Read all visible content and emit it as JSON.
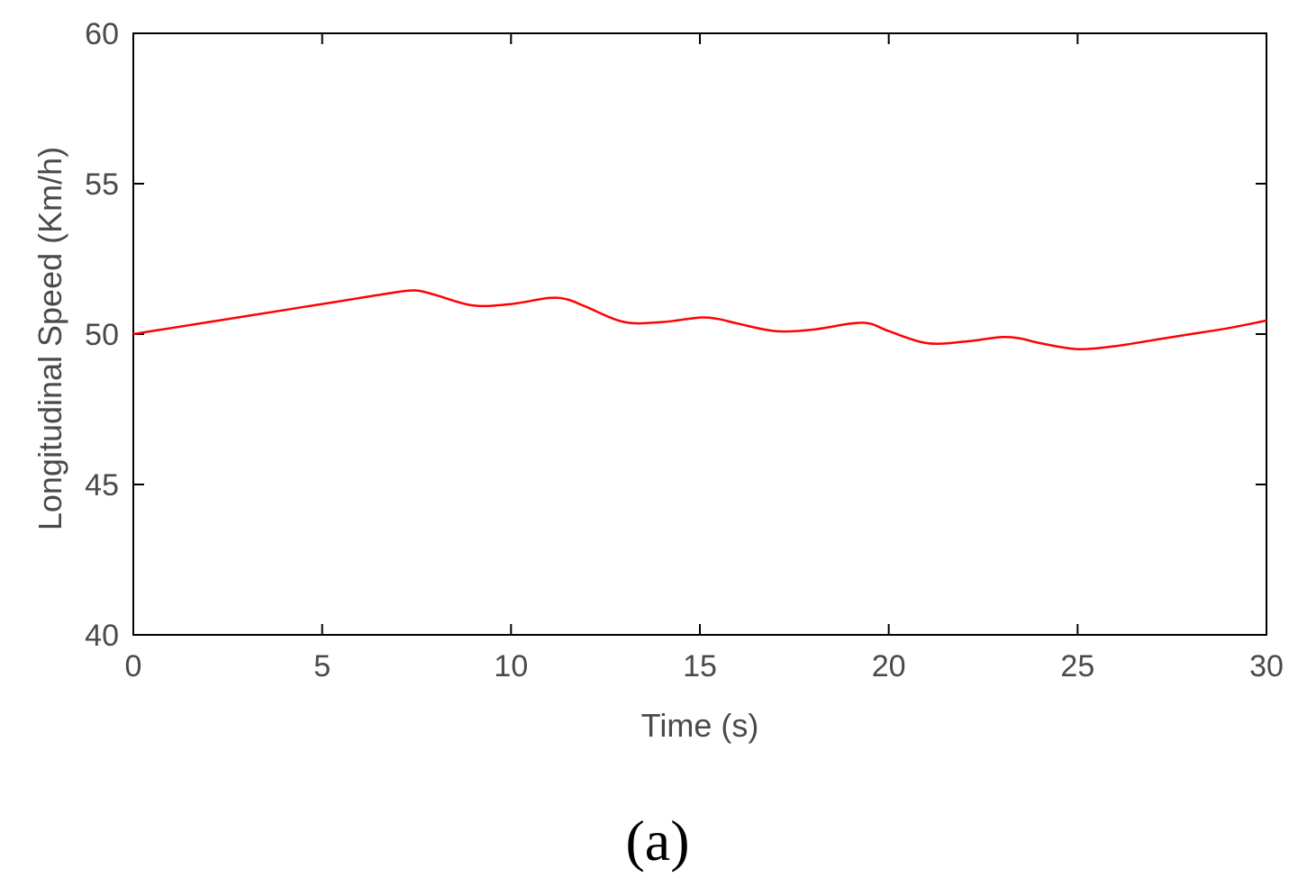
{
  "chart_data": {
    "type": "line",
    "title": "",
    "xlabel": "Time (s)",
    "ylabel": "Longitudinal Speed (Km/h)",
    "xlim": [
      0,
      30
    ],
    "ylim": [
      40,
      60
    ],
    "xticks": [
      0,
      5,
      10,
      15,
      20,
      25,
      30
    ],
    "yticks": [
      40,
      45,
      50,
      55,
      60
    ],
    "grid": false,
    "series": [
      {
        "color": "#ff0000",
        "x": [
          0,
          1,
          2,
          3,
          4,
          5,
          6,
          7,
          7.5,
          8,
          9,
          10,
          11,
          11.5,
          12,
          13,
          14,
          15,
          15.5,
          16,
          17,
          18,
          19,
          19.5,
          20,
          21,
          22,
          23,
          23.5,
          24,
          25,
          26,
          27,
          28,
          29,
          30
        ],
        "y": [
          50.0,
          50.2,
          50.4,
          50.6,
          50.8,
          51.0,
          51.2,
          51.4,
          51.45,
          51.3,
          50.95,
          51.0,
          51.2,
          51.15,
          50.9,
          50.4,
          50.4,
          50.55,
          50.5,
          50.35,
          50.1,
          50.15,
          50.35,
          50.35,
          50.1,
          49.7,
          49.75,
          49.9,
          49.85,
          49.7,
          49.5,
          49.6,
          49.8,
          50.0,
          50.2,
          50.45
        ]
      }
    ]
  },
  "caption": "(a)"
}
